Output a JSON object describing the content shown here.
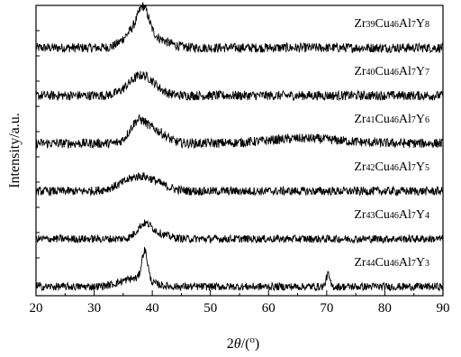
{
  "chart_data": {
    "type": "line",
    "title": "",
    "xlabel": "2θ/(°)",
    "xlabel_parts": {
      "prefix": "2",
      "var": "θ",
      "mid": "/(",
      "sup": "o",
      "suffix": ")"
    },
    "ylabel": "Intensity/a.u.",
    "xlim": [
      20,
      90
    ],
    "x_ticks": [
      20,
      30,
      40,
      50,
      60,
      70,
      80,
      90
    ],
    "y_ticks_shown": false,
    "grid": false,
    "legend": "none",
    "series": [
      {
        "name": "Zr39Cu46Al7Y8",
        "parts": [
          [
            "Zr",
            ""
          ],
          [
            "39",
            "sub"
          ],
          [
            "Cu",
            ""
          ],
          [
            "46",
            "sub"
          ],
          [
            "Al",
            ""
          ],
          [
            "7",
            "sub"
          ],
          [
            "Y",
            ""
          ],
          [
            "8",
            "sub"
          ]
        ],
        "offset": 5,
        "peaks": [
          [
            37.0,
            0.55,
            1.8
          ],
          [
            38.5,
            0.85,
            0.9
          ],
          [
            40.0,
            0.35,
            2.5
          ]
        ],
        "noise": 0.22
      },
      {
        "name": "Zr40Cu46Al7Y7",
        "parts": [
          [
            "Zr",
            ""
          ],
          [
            "40",
            "sub"
          ],
          [
            "Cu",
            ""
          ],
          [
            "46",
            "sub"
          ],
          [
            "Al",
            ""
          ],
          [
            "7",
            "sub"
          ],
          [
            "Y",
            ""
          ],
          [
            "7",
            "sub"
          ]
        ],
        "offset": 4,
        "peaks": [
          [
            38.2,
            0.75,
            2.2
          ]
        ],
        "noise": 0.22
      },
      {
        "name": "Zr41Cu46Al7Y6",
        "parts": [
          [
            "Zr",
            ""
          ],
          [
            "41",
            "sub"
          ],
          [
            "Cu",
            ""
          ],
          [
            "46",
            "sub"
          ],
          [
            "Al",
            ""
          ],
          [
            "7",
            "sub"
          ],
          [
            "Y",
            ""
          ],
          [
            "6",
            "sub"
          ]
        ],
        "offset": 3,
        "peaks": [
          [
            37.5,
            0.75,
            1.4
          ],
          [
            40.5,
            0.45,
            1.8
          ],
          [
            66.0,
            0.18,
            6.0
          ]
        ],
        "noise": 0.22
      },
      {
        "name": "Zr42Cu46Al7Y5",
        "parts": [
          [
            "Zr",
            ""
          ],
          [
            "42",
            "sub"
          ],
          [
            "Cu",
            ""
          ],
          [
            "46",
            "sub"
          ],
          [
            "Al",
            ""
          ],
          [
            "7",
            "sub"
          ],
          [
            "Y",
            ""
          ],
          [
            "5",
            "sub"
          ]
        ],
        "offset": 2,
        "peaks": [
          [
            38.0,
            0.55,
            3.0
          ]
        ],
        "noise": 0.2
      },
      {
        "name": "Zr43Cu46Al7Y4",
        "parts": [
          [
            "Zr",
            ""
          ],
          [
            "43",
            "sub"
          ],
          [
            "Cu",
            ""
          ],
          [
            "46",
            "sub"
          ],
          [
            "Al",
            ""
          ],
          [
            "7",
            "sub"
          ],
          [
            "Y",
            ""
          ],
          [
            "4",
            "sub"
          ]
        ],
        "offset": 1,
        "peaks": [
          [
            38.6,
            0.45,
            1.2
          ],
          [
            40.5,
            0.2,
            2.0
          ]
        ],
        "noise": 0.18
      },
      {
        "name": "Zr44Cu46Al7Y3",
        "parts": [
          [
            "Zr",
            ""
          ],
          [
            "44",
            "sub"
          ],
          [
            "Cu",
            ""
          ],
          [
            "46",
            "sub"
          ],
          [
            "Al",
            ""
          ],
          [
            "7",
            "sub"
          ],
          [
            "Y",
            ""
          ],
          [
            "3",
            "sub"
          ]
        ],
        "offset": 0,
        "peaks": [
          [
            38.7,
            1.1,
            0.5
          ],
          [
            37.0,
            0.3,
            2.5
          ],
          [
            70.2,
            0.45,
            0.3
          ]
        ],
        "noise": 0.18
      }
    ]
  }
}
